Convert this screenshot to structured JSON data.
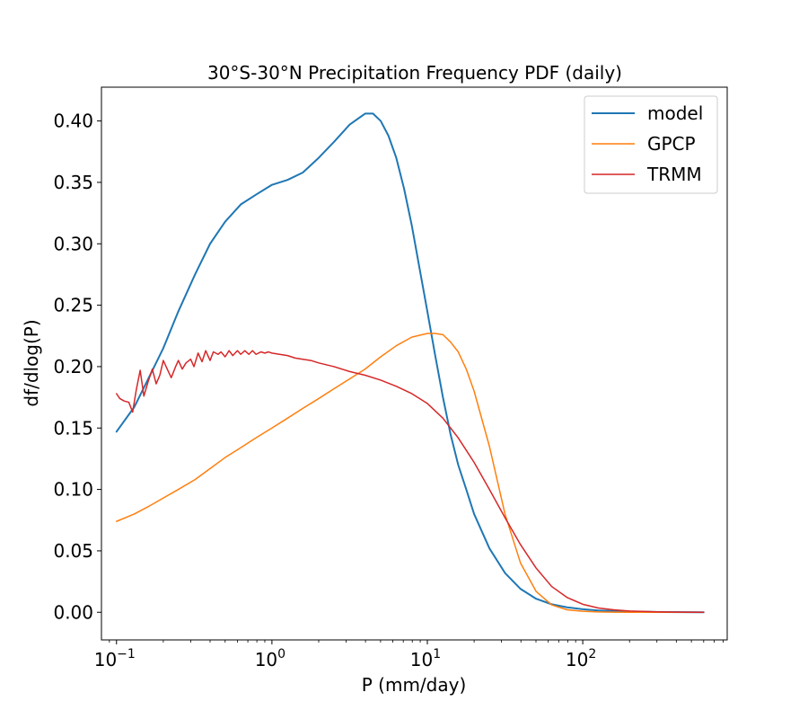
{
  "chart_data": {
    "type": "line",
    "title": "30°S-30°N Precipitation Frequency PDF (daily)",
    "xlabel": "P (mm/day)",
    "ylabel": "df/dlog(P)",
    "xscale": "log",
    "xlim": [
      0.08,
      850
    ],
    "ylim": [
      -0.0225,
      0.4275
    ],
    "x_ticks": [
      {
        "value": 0.1,
        "base": "10",
        "exp": "−1"
      },
      {
        "value": 1,
        "base": "10",
        "exp": "0"
      },
      {
        "value": 10,
        "base": "10",
        "exp": "1"
      },
      {
        "value": 100,
        "base": "10",
        "exp": "2"
      }
    ],
    "y_ticks": [
      {
        "value": 0.0,
        "label": "0.00"
      },
      {
        "value": 0.05,
        "label": "0.05"
      },
      {
        "value": 0.1,
        "label": "0.10"
      },
      {
        "value": 0.15,
        "label": "0.15"
      },
      {
        "value": 0.2,
        "label": "0.20"
      },
      {
        "value": 0.25,
        "label": "0.25"
      },
      {
        "value": 0.3,
        "label": "0.30"
      },
      {
        "value": 0.35,
        "label": "0.35"
      },
      {
        "value": 0.4,
        "label": "0.40"
      }
    ],
    "legend_position": "top-right",
    "series": [
      {
        "name": "model",
        "color": "#1f77b4",
        "width": 2,
        "x": [
          0.1,
          0.13,
          0.16,
          0.2,
          0.25,
          0.32,
          0.4,
          0.5,
          0.63,
          0.79,
          1.0,
          1.26,
          1.58,
          2.0,
          2.51,
          3.16,
          3.98,
          4.47,
          5.01,
          5.62,
          6.31,
          7.08,
          7.94,
          8.91,
          10.0,
          11.2,
          12.6,
          14.1,
          15.8,
          17.8,
          20.0,
          25.1,
          31.6,
          39.8,
          50.1,
          63.1,
          79.4,
          100,
          126,
          158,
          200,
          316,
          600
        ],
        "y": [
          0.147,
          0.167,
          0.19,
          0.215,
          0.245,
          0.275,
          0.3,
          0.318,
          0.332,
          0.34,
          0.348,
          0.352,
          0.358,
          0.37,
          0.383,
          0.397,
          0.406,
          0.406,
          0.4,
          0.388,
          0.37,
          0.345,
          0.315,
          0.28,
          0.245,
          0.21,
          0.175,
          0.145,
          0.12,
          0.1,
          0.08,
          0.052,
          0.032,
          0.019,
          0.011,
          0.0065,
          0.004,
          0.0025,
          0.0015,
          0.001,
          0.0006,
          0.0002,
          0.0
        ]
      },
      {
        "name": "GPCP",
        "color": "#ff7f0e",
        "width": 1.5,
        "x": [
          0.1,
          0.13,
          0.16,
          0.2,
          0.25,
          0.32,
          0.4,
          0.5,
          0.63,
          0.79,
          1.0,
          1.26,
          1.58,
          2.0,
          2.51,
          3.16,
          3.98,
          5.01,
          6.31,
          7.94,
          10.0,
          11.2,
          12.6,
          14.1,
          15.8,
          17.8,
          20.0,
          25.1,
          31.6,
          39.8,
          50.1,
          63.1,
          79.4,
          100,
          126,
          158,
          200,
          316,
          600
        ],
        "y": [
          0.074,
          0.08,
          0.086,
          0.093,
          0.1,
          0.108,
          0.117,
          0.126,
          0.134,
          0.142,
          0.15,
          0.158,
          0.166,
          0.174,
          0.182,
          0.19,
          0.198,
          0.208,
          0.217,
          0.224,
          0.227,
          0.227,
          0.226,
          0.22,
          0.212,
          0.198,
          0.18,
          0.135,
          0.08,
          0.04,
          0.017,
          0.006,
          0.002,
          0.0008,
          0.0003,
          0.0001,
          0.0,
          0.0,
          0.0
        ]
      },
      {
        "name": "TRMM",
        "color": "#d62728",
        "width": 1.5,
        "x": [
          0.1,
          0.105,
          0.112,
          0.12,
          0.127,
          0.134,
          0.142,
          0.15,
          0.16,
          0.17,
          0.18,
          0.19,
          0.2,
          0.212,
          0.225,
          0.24,
          0.25,
          0.265,
          0.28,
          0.3,
          0.315,
          0.335,
          0.355,
          0.375,
          0.4,
          0.42,
          0.45,
          0.47,
          0.5,
          0.53,
          0.56,
          0.6,
          0.63,
          0.67,
          0.71,
          0.75,
          0.79,
          0.85,
          0.9,
          0.95,
          1.0,
          1.12,
          1.26,
          1.41,
          1.58,
          1.78,
          2.0,
          2.51,
          3.16,
          3.98,
          5.01,
          6.31,
          7.94,
          10.0,
          12.6,
          15.8,
          20.0,
          25.1,
          31.6,
          39.8,
          50.1,
          63.1,
          79.4,
          100,
          126,
          158,
          200,
          316,
          600
        ],
        "y": [
          0.178,
          0.174,
          0.172,
          0.171,
          0.163,
          0.181,
          0.197,
          0.176,
          0.188,
          0.198,
          0.186,
          0.193,
          0.205,
          0.198,
          0.191,
          0.2,
          0.205,
          0.198,
          0.203,
          0.206,
          0.2,
          0.211,
          0.204,
          0.213,
          0.205,
          0.212,
          0.21,
          0.212,
          0.208,
          0.213,
          0.209,
          0.213,
          0.21,
          0.213,
          0.21,
          0.213,
          0.21,
          0.212,
          0.211,
          0.212,
          0.211,
          0.21,
          0.209,
          0.207,
          0.206,
          0.205,
          0.203,
          0.2,
          0.196,
          0.193,
          0.189,
          0.184,
          0.178,
          0.17,
          0.158,
          0.142,
          0.122,
          0.1,
          0.077,
          0.055,
          0.036,
          0.021,
          0.012,
          0.0065,
          0.0035,
          0.002,
          0.001,
          0.0003,
          0.0
        ]
      }
    ]
  }
}
